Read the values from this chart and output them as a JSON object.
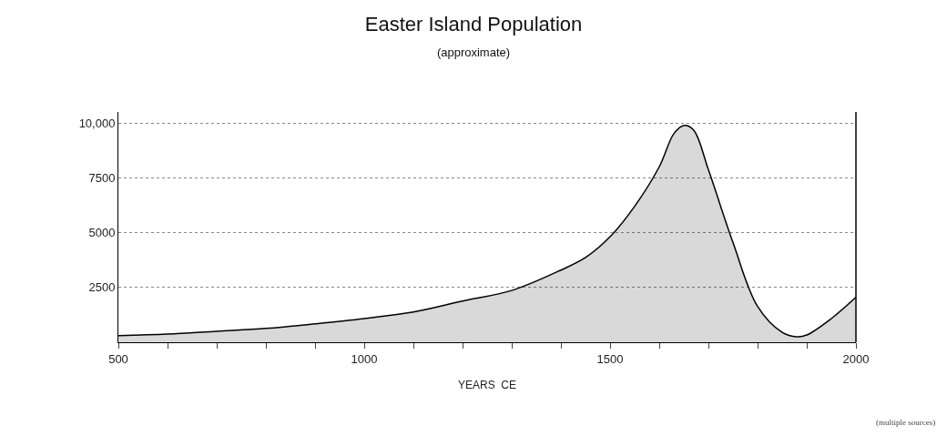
{
  "chart_data": {
    "type": "area",
    "title": "Easter Island Population",
    "subtitle": "(approximate)",
    "xlabel": "YEARS  CE",
    "x": [
      500,
      600,
      700,
      800,
      900,
      1000,
      1100,
      1200,
      1300,
      1400,
      1450,
      1500,
      1550,
      1600,
      1630,
      1650,
      1670,
      1700,
      1750,
      1800,
      1850,
      1880,
      1900,
      1950,
      2000
    ],
    "series": [
      {
        "color": "#000000",
        "values": [
          300,
          370,
          500,
          630,
          840,
          1080,
          1380,
          1880,
          2360,
          3290,
          3860,
          4810,
          6200,
          8000,
          9520,
          9880,
          9670,
          7860,
          4540,
          1630,
          450,
          250,
          330,
          1080,
          2050
        ]
      }
    ],
    "xlim": [
      500,
      2000
    ],
    "xticks": [
      500,
      {
        "value": 600,
        "label": null
      },
      {
        "value": 700,
        "label": null
      },
      {
        "value": 800,
        "label": null
      },
      {
        "value": 900,
        "label": null
      },
      1000,
      {
        "value": 1100,
        "label": null
      },
      {
        "value": 1200,
        "label": null
      },
      {
        "value": 1300,
        "label": null
      },
      {
        "value": 1400,
        "label": null
      },
      1500,
      {
        "value": 1600,
        "label": null
      },
      {
        "value": 1700,
        "label": null
      },
      {
        "value": 1800,
        "label": null
      },
      {
        "value": 1900,
        "label": null
      },
      2000
    ],
    "ylim": [
      0,
      10500
    ],
    "yticks": [
      2500,
      5000,
      7500,
      {
        "value": 10000,
        "label": "10,000"
      }
    ],
    "grid": "y",
    "marker": "none",
    "line_style": "solid",
    "annotations": [
      "(multiple sources)"
    ]
  }
}
